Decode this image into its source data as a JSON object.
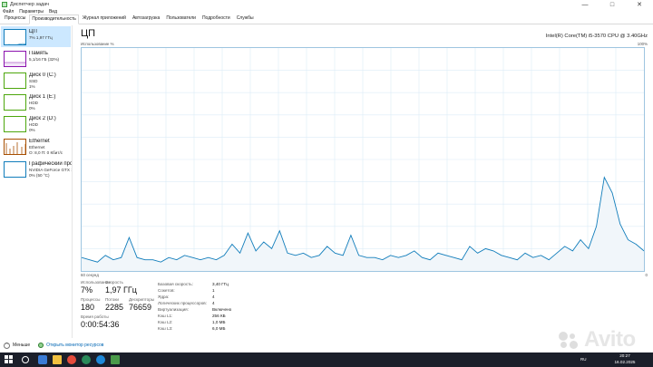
{
  "window": {
    "title": "Диспетчер задач",
    "minimize": "—",
    "maximize": "□",
    "close": "✕"
  },
  "menu": [
    "Файл",
    "Параметры",
    "Вид"
  ],
  "tabs": [
    {
      "label": "Процессы",
      "active": false
    },
    {
      "label": "Производительность",
      "active": true
    },
    {
      "label": "Журнал приложений",
      "active": false
    },
    {
      "label": "Автозагрузка",
      "active": false
    },
    {
      "label": "Пользователи",
      "active": false
    },
    {
      "label": "Подробности",
      "active": false
    },
    {
      "label": "Службы",
      "active": false
    }
  ],
  "sidebar": {
    "items": [
      {
        "title": "ЦП",
        "line1": "7% 1,97 ГГц",
        "line2": "",
        "color": "#117dbb",
        "active": true
      },
      {
        "title": "Память",
        "line1": "5,1/16 ГБ (32%)",
        "line2": "",
        "color": "#8b12ae",
        "active": false
      },
      {
        "title": "Диск 0 (C:)",
        "line1": "SSD",
        "line2": "1%",
        "color": "#4da60c",
        "active": false
      },
      {
        "title": "Диск 1 (E:)",
        "line1": "HDD",
        "line2": "0%",
        "color": "#4da60c",
        "active": false
      },
      {
        "title": "Диск 2 (D:)",
        "line1": "HDD",
        "line2": "0%",
        "color": "#4da60c",
        "active": false
      },
      {
        "title": "Ethernet",
        "line1": "Ethernet",
        "line2": "О: 8,0 П: 0 Кбит/с",
        "color": "#a74f01",
        "active": false
      },
      {
        "title": "Графический про",
        "line1": "NVIDIA GeForce GTX 10(",
        "line2": "0% (50 °C)",
        "color": "#117dbb",
        "active": false
      }
    ]
  },
  "main": {
    "title": "ЦП",
    "model": "Intel(R) Core(TM) i5-3570 CPU @ 3.40GHz",
    "usage_label": "Использование %",
    "max_pct": "100%",
    "seconds_label": "60 секунд",
    "zero_label": "0",
    "stats": {
      "usage_label": "Использование",
      "usage_value": "7%",
      "speed_label": "Скорость",
      "speed_value": "1,97 ГГц",
      "processes_label": "Процессы",
      "processes_value": "180",
      "threads_label": "Потоки",
      "threads_value": "2285",
      "handles_label": "Дескрипторы",
      "handles_value": "76659",
      "uptime_label": "Время работы",
      "uptime_value": "0:00:54:36"
    },
    "specs": [
      {
        "key": "Базовая скорость:",
        "value": "3,40 ГГц"
      },
      {
        "key": "Сокетов:",
        "value": "1"
      },
      {
        "key": "Ядра:",
        "value": "4"
      },
      {
        "key": "Логических процессоров:",
        "value": "4"
      },
      {
        "key": "Виртуализация:",
        "value": "Включено"
      },
      {
        "key": "Кэш L1:",
        "value": "256 КБ"
      },
      {
        "key": "Кэш L2:",
        "value": "1,0 МБ"
      },
      {
        "key": "Кэш L3:",
        "value": "6,0 МБ"
      }
    ]
  },
  "footer": {
    "less_label": "Меньше",
    "monitor_label": "Открыть монитор ресурсов"
  },
  "taskbar": {
    "lang": "RU",
    "time": "20:27",
    "date": "16.02.2025"
  },
  "watermark": {
    "text": "Avito"
  },
  "cpu_usage_history": [
    6,
    5,
    4,
    7,
    5,
    6,
    15,
    6,
    5,
    5,
    4,
    6,
    5,
    7,
    6,
    5,
    6,
    5,
    7,
    12,
    8,
    17,
    9,
    13,
    10,
    18,
    8,
    7,
    8,
    6,
    7,
    11,
    8,
    7,
    16,
    7,
    6,
    6,
    5,
    7,
    6,
    7,
    9,
    6,
    5,
    8,
    7,
    6,
    5,
    11,
    8,
    10,
    9,
    7,
    6,
    5,
    8,
    6,
    7,
    5,
    8,
    11,
    9,
    14,
    10,
    20,
    42,
    35,
    21,
    14,
    12,
    9
  ],
  "colors": {
    "accent": "#117dbb",
    "graph_border": "#9ec5e0",
    "graph_grid": "#dcecf7",
    "graph_fill": "#f1f6fa",
    "selected_item": "#cce8ff",
    "link": "#0066b4",
    "taskbar": "#1b1f2a"
  }
}
